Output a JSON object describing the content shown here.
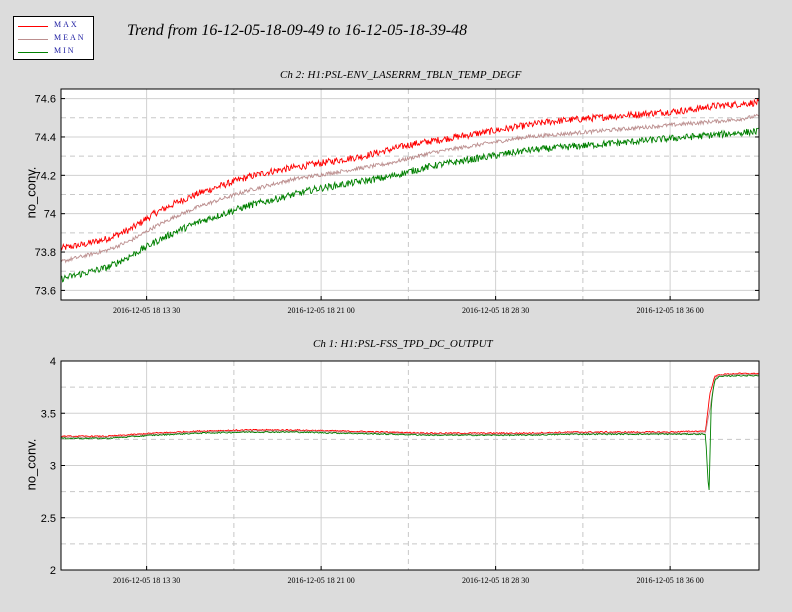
{
  "title": "Trend from 16-12-05-18-09-49 to 16-12-05-18-39-48",
  "legend": [
    {
      "label": "MAX",
      "color": "#ff0000"
    },
    {
      "label": "MEAN",
      "color": "#bc8f8f"
    },
    {
      "label": "MIN",
      "color": "#008000"
    }
  ],
  "chart_data": [
    {
      "type": "line",
      "title": "Ch 2: H1:PSL-ENV_LASERRM_TBLN_TEMP_DEGF",
      "ylabel": "no_conv.",
      "xlabel": "",
      "ylim": [
        73.55,
        74.65
      ],
      "yticks": [
        73.6,
        73.8,
        74,
        74.2,
        74.4,
        74.6
      ],
      "ytick_labels": [
        "73.6",
        "73.8",
        "74",
        "74.2",
        "74.4",
        "74.6"
      ],
      "xlim_minutes": [
        0,
        30
      ],
      "xtick_labels": [
        "2016-12-05 18 13 30",
        "2016-12-05 18 21 00",
        "2016-12-05 18 28 30",
        "2016-12-05 18 36 00"
      ],
      "xtick_minutes": [
        3.68,
        11.18,
        18.68,
        26.18
      ],
      "grid": true,
      "series": [
        {
          "name": "MAX",
          "color": "#ff0000",
          "x": [
            0,
            1,
            2,
            3,
            4,
            5,
            6,
            7,
            8,
            9,
            10,
            11,
            12,
            13,
            14,
            15,
            16,
            17,
            18,
            19,
            20,
            21,
            22,
            23,
            24,
            25,
            26,
            27,
            28,
            29,
            30
          ],
          "y": [
            73.82,
            73.84,
            73.87,
            73.92,
            74.0,
            74.06,
            74.11,
            74.15,
            74.19,
            74.22,
            74.24,
            74.26,
            74.28,
            74.3,
            74.33,
            74.36,
            74.38,
            74.4,
            74.42,
            74.44,
            74.46,
            74.48,
            74.49,
            74.5,
            74.51,
            74.52,
            74.53,
            74.54,
            74.56,
            74.57,
            74.58
          ]
        },
        {
          "name": "MEAN",
          "color": "#bc8f8f",
          "x": [
            0,
            1,
            2,
            3,
            4,
            5,
            6,
            7,
            8,
            9,
            10,
            11,
            12,
            13,
            14,
            15,
            16,
            17,
            18,
            19,
            20,
            21,
            22,
            23,
            24,
            25,
            26,
            27,
            28,
            29,
            30
          ],
          "y": [
            73.75,
            73.78,
            73.81,
            73.86,
            73.93,
            73.99,
            74.04,
            74.08,
            74.12,
            74.15,
            74.18,
            74.2,
            74.22,
            74.24,
            74.26,
            74.29,
            74.32,
            74.34,
            74.36,
            74.38,
            74.4,
            74.41,
            74.42,
            74.43,
            74.44,
            74.45,
            74.46,
            74.47,
            74.48,
            74.49,
            74.51
          ]
        },
        {
          "name": "MIN",
          "color": "#008000",
          "x": [
            0,
            1,
            2,
            3,
            4,
            5,
            6,
            7,
            8,
            9,
            10,
            11,
            12,
            13,
            14,
            15,
            16,
            17,
            18,
            19,
            20,
            21,
            22,
            23,
            24,
            25,
            26,
            27,
            28,
            29,
            30
          ],
          "y": [
            73.66,
            73.69,
            73.72,
            73.78,
            73.85,
            73.91,
            73.96,
            74.0,
            74.04,
            74.07,
            74.1,
            74.13,
            74.15,
            74.17,
            74.19,
            74.22,
            74.25,
            74.27,
            74.29,
            74.31,
            74.33,
            74.34,
            74.35,
            74.36,
            74.37,
            74.38,
            74.39,
            74.4,
            74.41,
            74.42,
            74.43
          ]
        }
      ]
    },
    {
      "type": "line",
      "title": "Ch 1: H1:PSL-FSS_TPD_DC_OUTPUT",
      "ylabel": "no_conv.",
      "xlabel": "",
      "ylim": [
        2,
        4
      ],
      "yticks": [
        2,
        2.5,
        3,
        3.5,
        4
      ],
      "ytick_labels": [
        "2",
        "2.5",
        "3",
        "3.5",
        "4"
      ],
      "xlim_minutes": [
        0,
        30
      ],
      "xtick_labels": [
        "2016-12-05 18 13 30",
        "2016-12-05 18 21 00",
        "2016-12-05 18 28 30",
        "2016-12-05 18 36 00"
      ],
      "xtick_minutes": [
        3.68,
        11.18,
        18.68,
        26.18
      ],
      "grid": true,
      "series": [
        {
          "name": "MAX",
          "color": "#ff0000",
          "x": [
            0,
            2,
            4,
            6,
            8,
            10,
            12,
            14,
            16,
            18,
            20,
            22,
            24,
            26,
            27.7,
            27.9,
            28.1,
            28.3,
            29,
            30
          ],
          "y": [
            3.28,
            3.28,
            3.31,
            3.33,
            3.34,
            3.34,
            3.33,
            3.32,
            3.31,
            3.31,
            3.31,
            3.32,
            3.32,
            3.32,
            3.33,
            3.7,
            3.85,
            3.87,
            3.88,
            3.88
          ]
        },
        {
          "name": "MEAN",
          "color": "#bc8f8f",
          "x": [
            0,
            2,
            4,
            6,
            8,
            10,
            12,
            14,
            16,
            18,
            20,
            22,
            24,
            26,
            27.7,
            27.9,
            28.1,
            28.3,
            29,
            30
          ],
          "y": [
            3.27,
            3.27,
            3.3,
            3.32,
            3.33,
            3.33,
            3.32,
            3.31,
            3.3,
            3.3,
            3.3,
            3.31,
            3.31,
            3.31,
            3.31,
            3.55,
            3.83,
            3.86,
            3.87,
            3.87
          ]
        },
        {
          "name": "MIN",
          "color": "#008000",
          "x": [
            0,
            2,
            4,
            6,
            8,
            10,
            12,
            14,
            16,
            18,
            20,
            22,
            24,
            26,
            27.7,
            27.85,
            27.95,
            28.1,
            28.3,
            29,
            30
          ],
          "y": [
            3.26,
            3.26,
            3.29,
            3.31,
            3.32,
            3.32,
            3.31,
            3.3,
            3.29,
            3.29,
            3.29,
            3.3,
            3.3,
            3.3,
            3.3,
            2.7,
            3.6,
            3.82,
            3.85,
            3.86,
            3.86
          ]
        }
      ]
    }
  ]
}
